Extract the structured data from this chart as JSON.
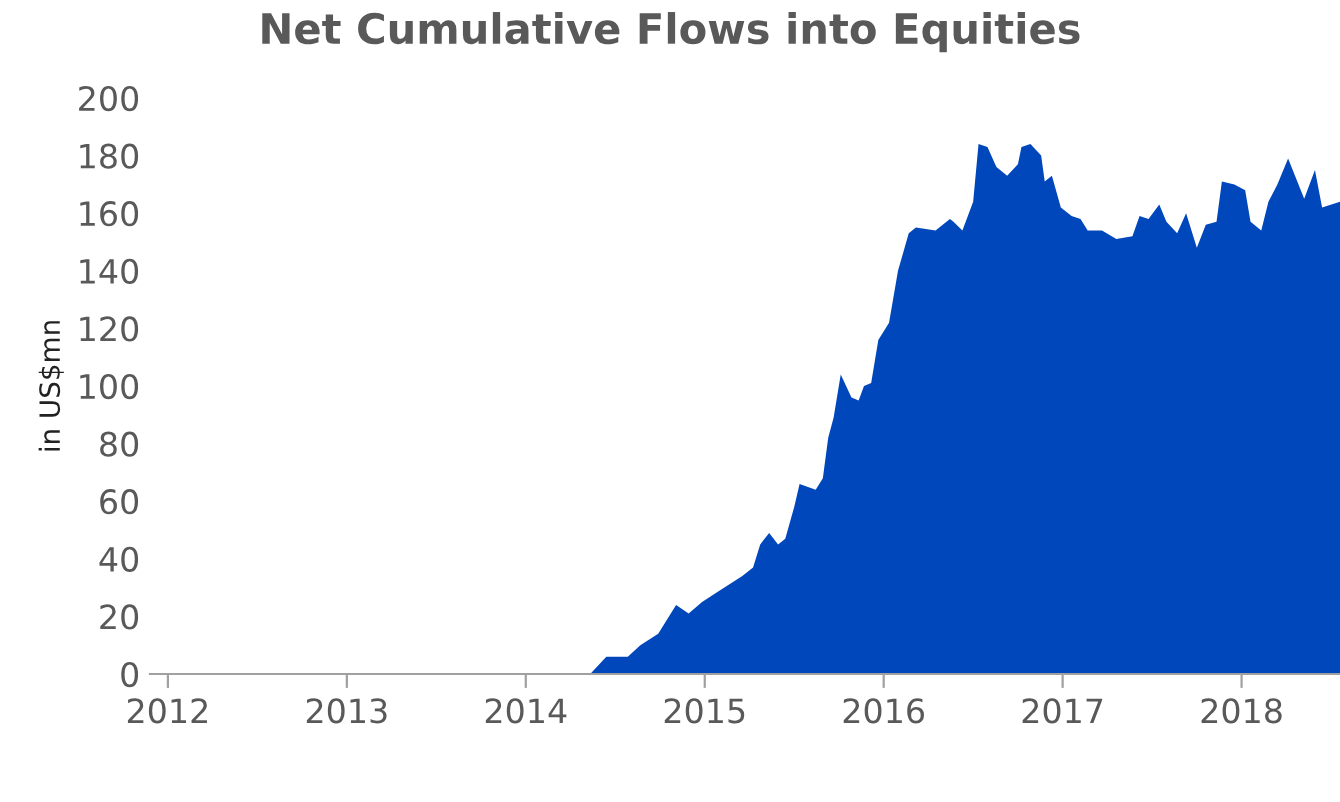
{
  "chart_data": {
    "type": "area",
    "title": "Net Cumulative Flows into Equities",
    "ylabel": "in US$mn",
    "xlim": [
      2011.9,
      2018.55
    ],
    "xticks": [
      2012,
      2013,
      2014,
      2015,
      2016,
      2017,
      2018
    ],
    "ylim": [
      0,
      200
    ],
    "yticks": [
      0,
      20,
      40,
      60,
      80,
      100,
      120,
      140,
      160,
      180,
      200
    ],
    "grid": false,
    "legend": false,
    "series": [
      {
        "color": "#0047bb",
        "x": [
          2012,
          2014.36,
          2014.45,
          2014.57,
          2014.64,
          2014.74,
          2014.8,
          2014.84,
          2014.91,
          2014.985,
          2015.06,
          2015.11,
          2015.21,
          2015.27,
          2015.31,
          2015.36,
          2015.41,
          2015.45,
          2015.5,
          2015.53,
          2015.62,
          2015.66,
          2015.69,
          2015.72,
          2015.76,
          2015.82,
          2015.86,
          2015.89,
          2015.93,
          2015.97,
          2016.03,
          2016.08,
          2016.14,
          2016.18,
          2016.29,
          2016.37,
          2016.39,
          2016.44,
          2016.5,
          2016.53,
          2016.58,
          2016.63,
          2016.69,
          2016.75,
          2016.77,
          2016.82,
          2016.88,
          2016.9,
          2016.94,
          2016.99,
          2017.05,
          2017.1,
          2017.14,
          2017.22,
          2017.3,
          2017.39,
          2017.43,
          2017.48,
          2017.54,
          2017.58,
          2017.64,
          2017.69,
          2017.75,
          2017.8,
          2017.86,
          2017.89,
          2017.96,
          2018.02,
          2018.05,
          2018.11,
          2018.15,
          2018.2,
          2018.26,
          2018.35,
          2018.41,
          2018.45,
          2018.55
        ],
        "values": [
          0,
          0,
          6,
          6,
          10,
          14,
          20,
          24,
          21,
          25,
          28,
          30,
          34,
          37,
          45,
          49,
          45,
          47,
          58,
          66,
          64,
          68,
          82,
          89,
          104,
          96,
          95,
          100,
          101,
          116,
          122,
          140,
          153,
          155,
          154,
          158,
          157,
          154,
          164,
          184,
          183,
          176,
          173,
          177,
          183,
          184,
          180,
          171,
          173,
          162,
          159,
          158,
          154,
          154,
          151,
          152,
          159,
          158,
          163,
          157,
          153,
          160,
          148,
          156,
          157,
          171,
          170,
          168,
          157,
          154,
          164,
          170,
          179,
          165,
          175,
          162,
          164
        ]
      }
    ]
  }
}
